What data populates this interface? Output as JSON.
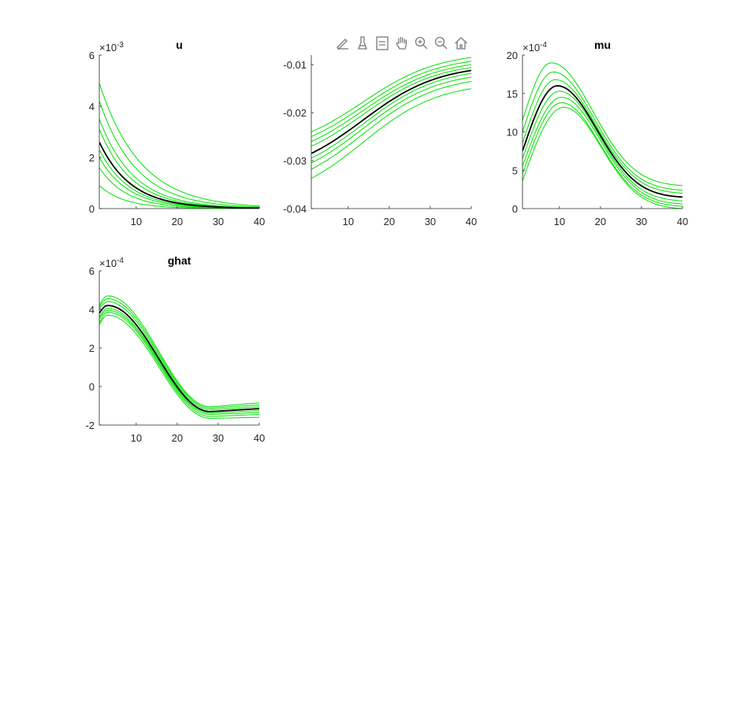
{
  "toolbar": {
    "buttons": [
      {
        "icon": "data-tips-icon"
      },
      {
        "icon": "brush-icon"
      },
      {
        "icon": "legend-icon"
      },
      {
        "icon": "pan-hand-icon"
      },
      {
        "icon": "zoom-in-icon"
      },
      {
        "icon": "zoom-out-icon"
      },
      {
        "icon": "home-icon"
      }
    ]
  },
  "colors": {
    "band": "#00e000",
    "median": "#000000",
    "axis": "#262626"
  },
  "chart_data": [
    {
      "type": "line",
      "title": "u",
      "exponent_label": "×10",
      "exponent": "-3",
      "xlim": [
        1,
        40
      ],
      "ylim": [
        0,
        6
      ],
      "xticks": [
        "10",
        "20",
        "30",
        "40"
      ],
      "yticks": [
        "0",
        "2",
        "4",
        "6"
      ],
      "shape": "decay",
      "median": {
        "start": 2.6,
        "rate": 0.13
      },
      "bands": [
        {
          "start": 4.9,
          "rate": 0.1
        },
        {
          "start": 4.2,
          "rate": 0.11
        },
        {
          "start": 3.5,
          "rate": 0.12
        },
        {
          "start": 3.1,
          "rate": 0.125
        },
        {
          "start": 2.3,
          "rate": 0.135
        },
        {
          "start": 2.0,
          "rate": 0.14
        },
        {
          "start": 1.6,
          "rate": 0.15
        },
        {
          "start": 0.9,
          "rate": 0.16
        }
      ]
    },
    {
      "type": "line",
      "title": "",
      "exponent_label": "",
      "exponent": "",
      "xlim": [
        1,
        40
      ],
      "ylim": [
        -0.04,
        -0.008
      ],
      "xticks": [
        "10",
        "20",
        "30",
        "40"
      ],
      "yticks": [
        "-0.04",
        "-0.03",
        "-0.02",
        "-0.01"
      ],
      "ytick_values": [
        -0.04,
        -0.03,
        -0.02,
        -0.01
      ],
      "shape": "sigmoid",
      "median": {
        "start": -0.0285,
        "end": -0.0112
      },
      "bands": [
        {
          "start": -0.024,
          "end": -0.0085
        },
        {
          "start": -0.025,
          "end": -0.0093
        },
        {
          "start": -0.026,
          "end": -0.01
        },
        {
          "start": -0.027,
          "end": -0.0106
        },
        {
          "start": -0.0295,
          "end": -0.0118
        },
        {
          "start": -0.0305,
          "end": -0.0126
        },
        {
          "start": -0.0318,
          "end": -0.0135
        },
        {
          "start": -0.0337,
          "end": -0.015
        }
      ]
    },
    {
      "type": "line",
      "title": "mu",
      "exponent_label": "×10",
      "exponent": "-4",
      "xlim": [
        1,
        40
      ],
      "ylim": [
        0,
        20
      ],
      "xticks": [
        "10",
        "20",
        "30",
        "40"
      ],
      "yticks": [
        "0",
        "5",
        "10",
        "15",
        "20"
      ],
      "shape": "hump",
      "median": {
        "start": 7.5,
        "peak": 16.0,
        "peak_x": 9.5,
        "end": 1.5
      },
      "bands": [
        {
          "start": 11.5,
          "peak": 19.0,
          "peak_x": 8.0,
          "end": 3.0
        },
        {
          "start": 10.0,
          "peak": 17.8,
          "peak_x": 8.5,
          "end": 2.4
        },
        {
          "start": 8.5,
          "peak": 16.8,
          "peak_x": 9.0,
          "end": 2.0
        },
        {
          "start": 6.5,
          "peak": 15.3,
          "peak_x": 10.0,
          "end": 1.0
        },
        {
          "start": 5.5,
          "peak": 14.5,
          "peak_x": 10.5,
          "end": 0.6
        },
        {
          "start": 4.5,
          "peak": 13.8,
          "peak_x": 10.5,
          "end": 0.3
        },
        {
          "start": 3.6,
          "peak": 13.2,
          "peak_x": 11.0,
          "end": 0.0
        }
      ]
    },
    {
      "type": "line",
      "title": "ghat",
      "exponent_label": "×10",
      "exponent": "-4",
      "xlim": [
        1,
        40
      ],
      "ylim": [
        -2,
        6
      ],
      "xticks": [
        "10",
        "20",
        "30",
        "40"
      ],
      "yticks": [
        "-2",
        "0",
        "2",
        "4",
        "6"
      ],
      "shape": "wave",
      "median": {
        "start": 3.8,
        "peak": 4.2,
        "trough": -1.3,
        "end": -1.15
      },
      "bands": [
        {
          "start": 4.2,
          "peak": 4.7,
          "trough": -1.05,
          "end": -0.85
        },
        {
          "start": 4.1,
          "peak": 4.55,
          "trough": -1.12,
          "end": -0.95
        },
        {
          "start": 4.0,
          "peak": 4.4,
          "trough": -1.2,
          "end": -1.05
        },
        {
          "start": 3.6,
          "peak": 4.05,
          "trough": -1.38,
          "end": -1.25
        },
        {
          "start": 3.5,
          "peak": 3.95,
          "trough": -1.45,
          "end": -1.35
        },
        {
          "start": 3.3,
          "peak": 3.85,
          "trough": -1.55,
          "end": -1.45
        },
        {
          "start": 3.2,
          "peak": 3.7,
          "trough": -1.65,
          "end": -1.6
        }
      ]
    }
  ]
}
